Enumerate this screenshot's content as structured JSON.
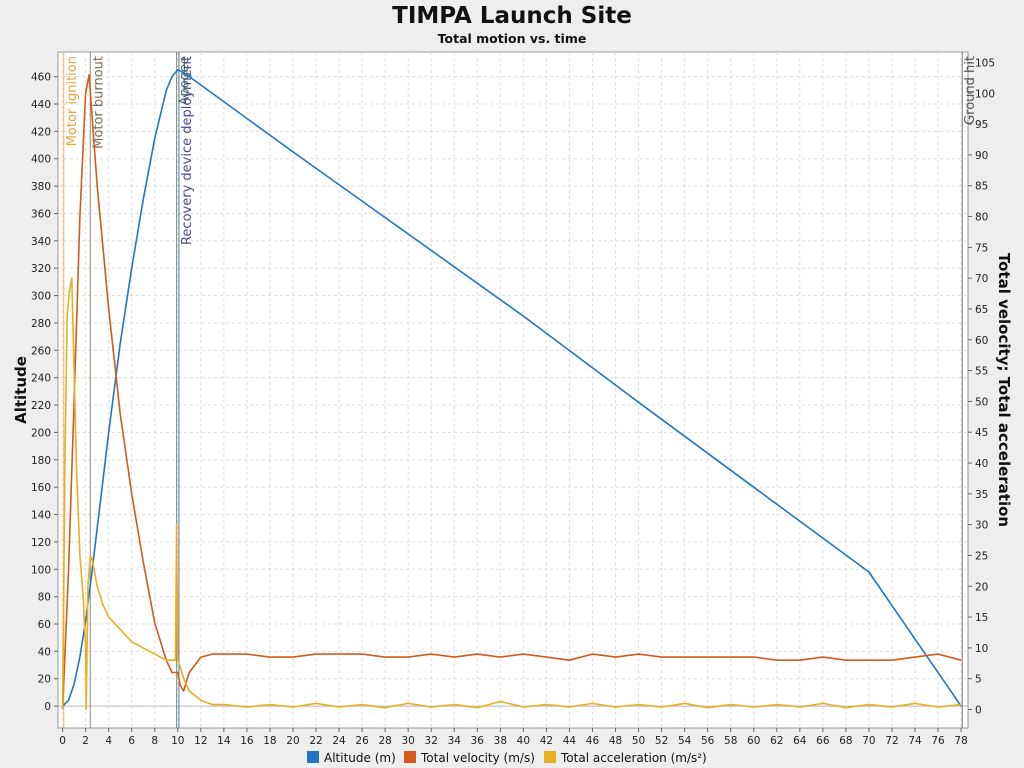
{
  "chart_data": {
    "type": "line",
    "title": "TIMPA Launch Site",
    "subtitle": "Total motion vs. time",
    "ylabel_left": "Altitude",
    "ylabel_right": "Total velocity; Total acceleration",
    "xlim": [
      -0.4,
      78.6
    ],
    "ylim_left": [
      -16,
      478
    ],
    "ylim_right": [
      -3.0,
      106.7
    ],
    "x_ticks": [
      0,
      2,
      4,
      6,
      8,
      10,
      12,
      14,
      16,
      18,
      20,
      22,
      24,
      26,
      28,
      30,
      32,
      34,
      36,
      38,
      40,
      42,
      44,
      46,
      48,
      50,
      52,
      54,
      56,
      58,
      60,
      62,
      64,
      66,
      68,
      70,
      72,
      74,
      76,
      78
    ],
    "y_left_ticks": [
      0,
      20,
      40,
      60,
      80,
      100,
      120,
      140,
      160,
      180,
      200,
      220,
      240,
      260,
      280,
      300,
      320,
      340,
      360,
      380,
      400,
      420,
      440,
      460
    ],
    "y_right_ticks": [
      0,
      5,
      10,
      15,
      20,
      25,
      30,
      35,
      40,
      45,
      50,
      55,
      60,
      65,
      70,
      75,
      80,
      85,
      90,
      95,
      100,
      105
    ],
    "grid": true,
    "legend_position": "bottom",
    "events": [
      {
        "label": "Motor ignition",
        "x": 0.1,
        "color": "#e8a33a"
      },
      {
        "label": "Motor burnout",
        "x": 2.4,
        "color": "#7a6a5a"
      },
      {
        "label": "Apogee",
        "x": 9.9,
        "color": "#3a7a5a"
      },
      {
        "label": "Recovery device deployment",
        "x": 10.1,
        "color": "#4a4a9a"
      },
      {
        "label": "Ground hit",
        "x": 78.1,
        "color": "#555555"
      }
    ],
    "series": [
      {
        "name": "Altitude (m)",
        "axis": "left",
        "color": "#1f77c4",
        "x": [
          0,
          0.5,
          1,
          1.5,
          2,
          2.5,
          3,
          4,
          5,
          6,
          7,
          8,
          9,
          9.5,
          10,
          10.5,
          20,
          30,
          40,
          50,
          60,
          70,
          78
        ],
        "y": [
          0,
          4,
          16,
          36,
          62,
          95,
          130,
          200,
          265,
          320,
          370,
          415,
          450,
          460,
          465,
          463,
          405,
          345,
          285,
          222,
          160,
          98,
          0
        ]
      },
      {
        "name": "Total velocity (m/s)",
        "axis": "right",
        "color": "#d45a1a",
        "x": [
          0,
          0.5,
          1,
          1.5,
          2,
          2.3,
          2.6,
          3,
          4,
          5,
          6,
          7,
          8,
          9,
          9.5,
          10,
          10.2,
          10.5,
          11,
          12,
          13,
          14,
          16,
          18,
          20,
          22,
          24,
          26,
          28,
          30,
          32,
          34,
          36,
          38,
          40,
          42,
          44,
          46,
          48,
          50,
          52,
          54,
          56,
          58,
          60,
          62,
          64,
          66,
          68,
          70,
          72,
          74,
          76,
          78
        ],
        "y": [
          0,
          22,
          50,
          80,
          100,
          103,
          95,
          85,
          65,
          48,
          35,
          24,
          14,
          8,
          6,
          6,
          4,
          3,
          6,
          8.5,
          9,
          9,
          9,
          8.5,
          8.5,
          9,
          9,
          9,
          8.5,
          8.5,
          9,
          8.5,
          9,
          8.5,
          9,
          8.5,
          8,
          9,
          8.5,
          9,
          8.5,
          8.5,
          8.5,
          8.5,
          8.5,
          8,
          8,
          8.5,
          8,
          8,
          8,
          8.5,
          9,
          8
        ]
      },
      {
        "name": "Total acceleration (m/s²)",
        "axis": "right",
        "color": "#e8b020",
        "x": [
          0,
          0.2,
          0.4,
          0.6,
          0.8,
          1,
          1.2,
          1.5,
          1.8,
          2,
          2.05,
          2.2,
          2.4,
          2.6,
          3,
          3.5,
          4,
          5,
          6,
          7,
          8,
          9,
          9.8,
          9.9,
          10,
          10.2,
          10.5,
          11,
          12,
          13,
          14,
          16,
          18,
          20,
          22,
          24,
          26,
          28,
          30,
          32,
          34,
          36,
          38,
          40,
          42,
          44,
          46,
          48,
          50,
          52,
          54,
          56,
          58,
          60,
          62,
          64,
          66,
          68,
          70,
          72,
          74,
          76,
          78
        ],
        "y": [
          0,
          40,
          64,
          68,
          70,
          55,
          40,
          25,
          18,
          10,
          0,
          20,
          25,
          24,
          20,
          17,
          15,
          13,
          11,
          10,
          9,
          8,
          8,
          30,
          8,
          7,
          5,
          3,
          1.5,
          0.8,
          0.8,
          0.4,
          0.8,
          0.4,
          1,
          0.4,
          0.8,
          0.3,
          1,
          0.4,
          0.8,
          0.3,
          1.3,
          0.4,
          0.8,
          0.4,
          1,
          0.4,
          0.8,
          0.4,
          1,
          0.3,
          0.8,
          0.4,
          0.8,
          0.4,
          1,
          0.3,
          0.8,
          0.4,
          1,
          0.4,
          0.8
        ]
      }
    ]
  }
}
